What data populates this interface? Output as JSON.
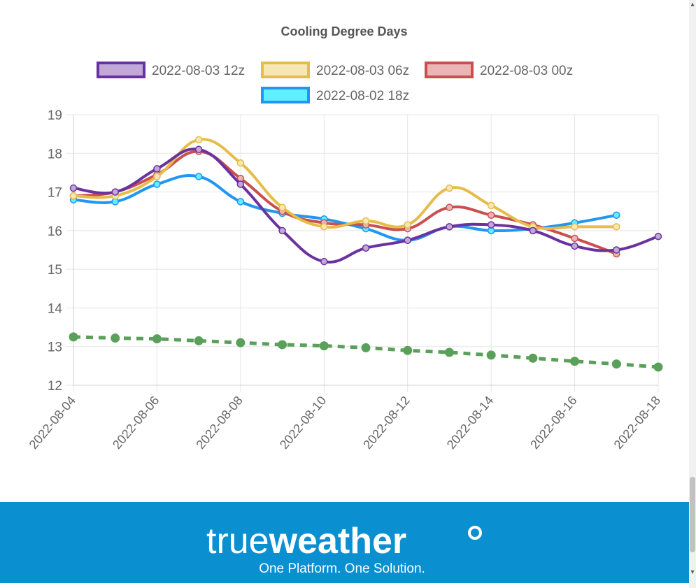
{
  "chart_data": {
    "type": "line",
    "title": "Cooling Degree Days",
    "x": [
      "2022-08-04",
      "2022-08-05",
      "2022-08-06",
      "2022-08-07",
      "2022-08-08",
      "2022-08-09",
      "2022-08-10",
      "2022-08-11",
      "2022-08-12",
      "2022-08-13",
      "2022-08-14",
      "2022-08-15",
      "2022-08-16",
      "2022-08-17",
      "2022-08-18"
    ],
    "x_tick_labels": [
      "2022-08-04",
      "2022-08-06",
      "2022-08-08",
      "2022-08-10",
      "2022-08-12",
      "2022-08-14",
      "2022-08-16",
      "2022-08-18"
    ],
    "ylim": [
      12,
      19
    ],
    "y_ticks": [
      12,
      13,
      14,
      15,
      16,
      17,
      18,
      19
    ],
    "grid": true,
    "legend_position": "top",
    "series": [
      {
        "name": "2022-08-03 12z",
        "color": "#6a329f",
        "fill": "#c2a8d8",
        "values": [
          17.1,
          17.0,
          17.6,
          18.1,
          17.2,
          16.0,
          15.2,
          15.55,
          15.75,
          16.1,
          16.15,
          16.0,
          15.6,
          15.5,
          15.85
        ]
      },
      {
        "name": "2022-08-03 06z",
        "color": "#e6bc4a",
        "fill": "#f6e6b4",
        "values": [
          16.9,
          16.9,
          17.4,
          18.35,
          17.75,
          16.6,
          16.1,
          16.25,
          16.15,
          17.1,
          16.65,
          16.1,
          16.1,
          16.1,
          null
        ]
      },
      {
        "name": "2022-08-03 00z",
        "color": "#c9504f",
        "fill": "#ecb5b5",
        "values": [
          16.9,
          17.0,
          17.45,
          18.05,
          17.35,
          16.5,
          16.2,
          16.15,
          16.05,
          16.6,
          16.4,
          16.15,
          15.8,
          15.4,
          null
        ]
      },
      {
        "name": "2022-08-02 18z",
        "color": "#2196f3",
        "fill": "#5ff0ff",
        "values": [
          16.8,
          16.75,
          17.2,
          17.4,
          16.75,
          16.45,
          16.3,
          16.05,
          15.75,
          16.1,
          16.0,
          16.05,
          16.2,
          16.4,
          null
        ]
      },
      {
        "name": "",
        "color": "#5aa05a",
        "fill": "#5aa05a",
        "dashed": true,
        "values": [
          13.25,
          13.22,
          13.2,
          13.15,
          13.1,
          13.05,
          13.02,
          12.97,
          12.9,
          12.85,
          12.78,
          12.7,
          12.62,
          12.55,
          12.47
        ]
      }
    ]
  },
  "brand": {
    "name_light": "true",
    "name_bold": "weather",
    "tagline": "One Platform. One Solution."
  },
  "colors": {
    "banner": "#0a8fd1",
    "grid": "#e5e5e5",
    "axis_text": "#666666",
    "title_text": "#555555"
  },
  "scrollbar": {
    "up_arrow": "▴",
    "down_arrow": "▾"
  }
}
